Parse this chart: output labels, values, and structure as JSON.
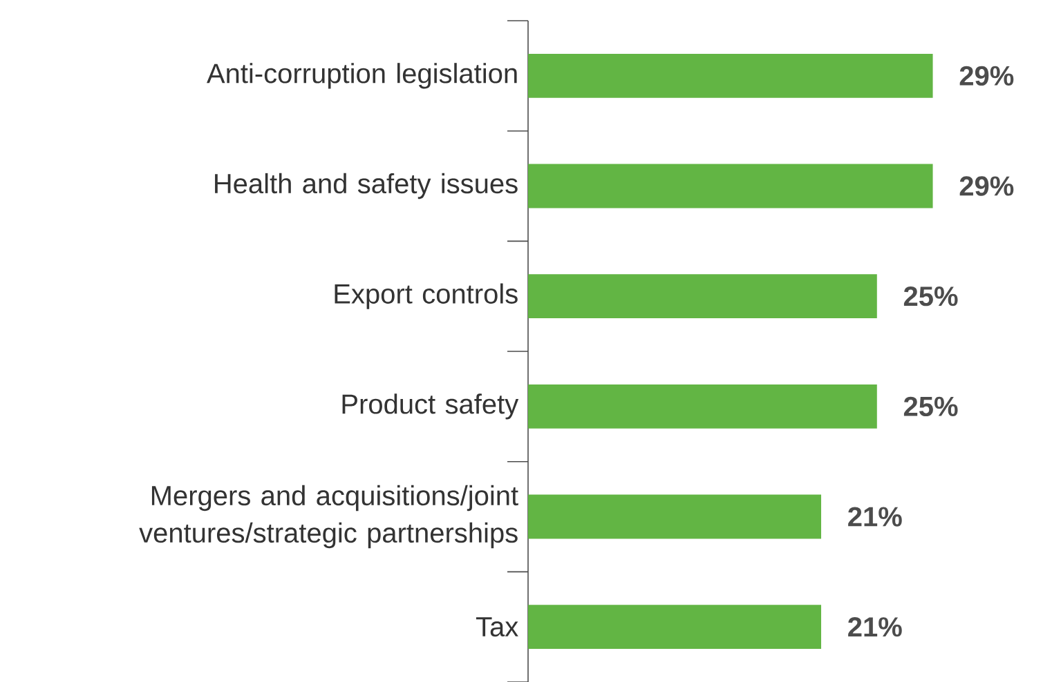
{
  "chart_data": {
    "type": "bar",
    "orientation": "horizontal",
    "categories": [
      "Anti-corruption legislation",
      "Health and safety issues",
      "Export controls",
      "Product safety",
      "Mergers and acquisitions/joint ventures/strategic partnerships",
      "Tax"
    ],
    "values": [
      29,
      29,
      25,
      25,
      21,
      21
    ],
    "value_labels": [
      "29%",
      "29%",
      "25%",
      "25%",
      "21%",
      "21%"
    ],
    "color": "#62b544"
  }
}
